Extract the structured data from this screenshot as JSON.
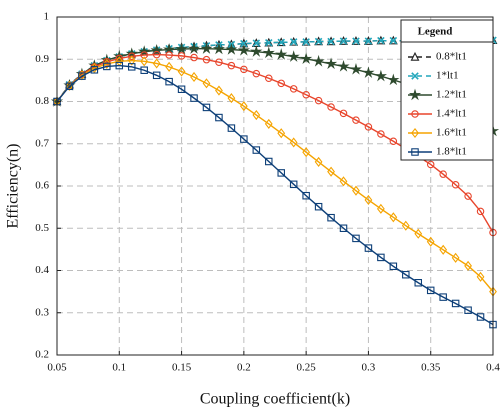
{
  "chart_data": {
    "type": "line",
    "xlabel": "Coupling coefficient(k)",
    "ylabel": "Efficiency(n)",
    "legend_title": "Legend",
    "legend": "upper right",
    "grid": true,
    "xlim": [
      0.05,
      0.4
    ],
    "xticks": [
      0.05,
      0.1,
      0.15,
      0.2,
      0.25,
      0.3,
      0.35,
      0.4
    ],
    "ylim": [
      0.2,
      1
    ],
    "yticks": [
      0.2,
      0.3,
      0.4,
      0.5,
      0.6,
      0.7,
      0.8,
      0.9,
      1
    ],
    "x": [
      0.05,
      0.06,
      0.07,
      0.08,
      0.09,
      0.1,
      0.11,
      0.12,
      0.13,
      0.14,
      0.15,
      0.16,
      0.17,
      0.18,
      0.19,
      0.2,
      0.21,
      0.22,
      0.23,
      0.24,
      0.25,
      0.26,
      0.27,
      0.28,
      0.29,
      0.3,
      0.31,
      0.32,
      0.33,
      0.34,
      0.35,
      0.36,
      0.37,
      0.38,
      0.39,
      0.4
    ],
    "series": [
      {
        "name": "0.8*lt1",
        "color": "#222222",
        "marker": "triangle",
        "dashed": true,
        "values": [
          0.8,
          0.84,
          0.865,
          0.885,
          0.897,
          0.906,
          0.913,
          0.918,
          0.922,
          0.925,
          0.928,
          0.93,
          0.932,
          0.934,
          0.935,
          0.937,
          0.938,
          0.939,
          0.94,
          0.941,
          0.941,
          0.942,
          0.942,
          0.943,
          0.943,
          0.943,
          0.944,
          0.944,
          0.944,
          0.944,
          0.945,
          0.945,
          0.945,
          0.945,
          0.945,
          0.945
        ]
      },
      {
        "name": "1*lt1",
        "color": "#22a6bb",
        "marker": "x",
        "dashed": true,
        "values": [
          0.8,
          0.84,
          0.865,
          0.885,
          0.897,
          0.906,
          0.913,
          0.918,
          0.922,
          0.925,
          0.928,
          0.93,
          0.932,
          0.934,
          0.935,
          0.937,
          0.938,
          0.939,
          0.94,
          0.941,
          0.941,
          0.942,
          0.942,
          0.943,
          0.943,
          0.943,
          0.944,
          0.944,
          0.944,
          0.944,
          0.945,
          0.945,
          0.945,
          0.945,
          0.945,
          0.945
        ]
      },
      {
        "name": "1.2*lt1",
        "color": "#2e4a2e",
        "marker": "star",
        "dashed": false,
        "values": [
          0.8,
          0.838,
          0.865,
          0.885,
          0.898,
          0.907,
          0.913,
          0.918,
          0.921,
          0.923,
          0.924,
          0.925,
          0.925,
          0.924,
          0.923,
          0.921,
          0.918,
          0.915,
          0.911,
          0.906,
          0.901,
          0.895,
          0.889,
          0.883,
          0.876,
          0.868,
          0.86,
          0.851,
          0.842,
          0.832,
          0.82,
          0.808,
          0.794,
          0.779,
          0.76,
          0.73
        ]
      },
      {
        "name": "1.4*lt1",
        "color": "#e8452c",
        "marker": "circle",
        "dashed": false,
        "values": [
          0.8,
          0.838,
          0.864,
          0.882,
          0.894,
          0.902,
          0.907,
          0.91,
          0.911,
          0.91,
          0.908,
          0.904,
          0.899,
          0.893,
          0.885,
          0.876,
          0.866,
          0.855,
          0.843,
          0.83,
          0.816,
          0.802,
          0.787,
          0.772,
          0.756,
          0.74,
          0.723,
          0.706,
          0.688,
          0.67,
          0.651,
          0.628,
          0.603,
          0.576,
          0.54,
          0.49
        ]
      },
      {
        "name": "1.6*lt1",
        "color": "#f5a400",
        "marker": "diamond",
        "dashed": false,
        "values": [
          0.8,
          0.837,
          0.862,
          0.879,
          0.889,
          0.895,
          0.897,
          0.895,
          0.89,
          0.882,
          0.871,
          0.858,
          0.843,
          0.826,
          0.808,
          0.789,
          0.768,
          0.747,
          0.725,
          0.703,
          0.68,
          0.657,
          0.634,
          0.611,
          0.589,
          0.567,
          0.546,
          0.526,
          0.506,
          0.487,
          0.468,
          0.449,
          0.43,
          0.411,
          0.385,
          0.35
        ]
      },
      {
        "name": "1.8*lt1",
        "color": "#0d3f78",
        "marker": "square",
        "dashed": false,
        "values": [
          0.8,
          0.836,
          0.86,
          0.875,
          0.883,
          0.885,
          0.882,
          0.874,
          0.862,
          0.847,
          0.829,
          0.808,
          0.786,
          0.762,
          0.737,
          0.711,
          0.685,
          0.658,
          0.631,
          0.604,
          0.577,
          0.551,
          0.525,
          0.5,
          0.476,
          0.453,
          0.431,
          0.41,
          0.39,
          0.371,
          0.353,
          0.337,
          0.322,
          0.306,
          0.29,
          0.272
        ]
      }
    ]
  }
}
